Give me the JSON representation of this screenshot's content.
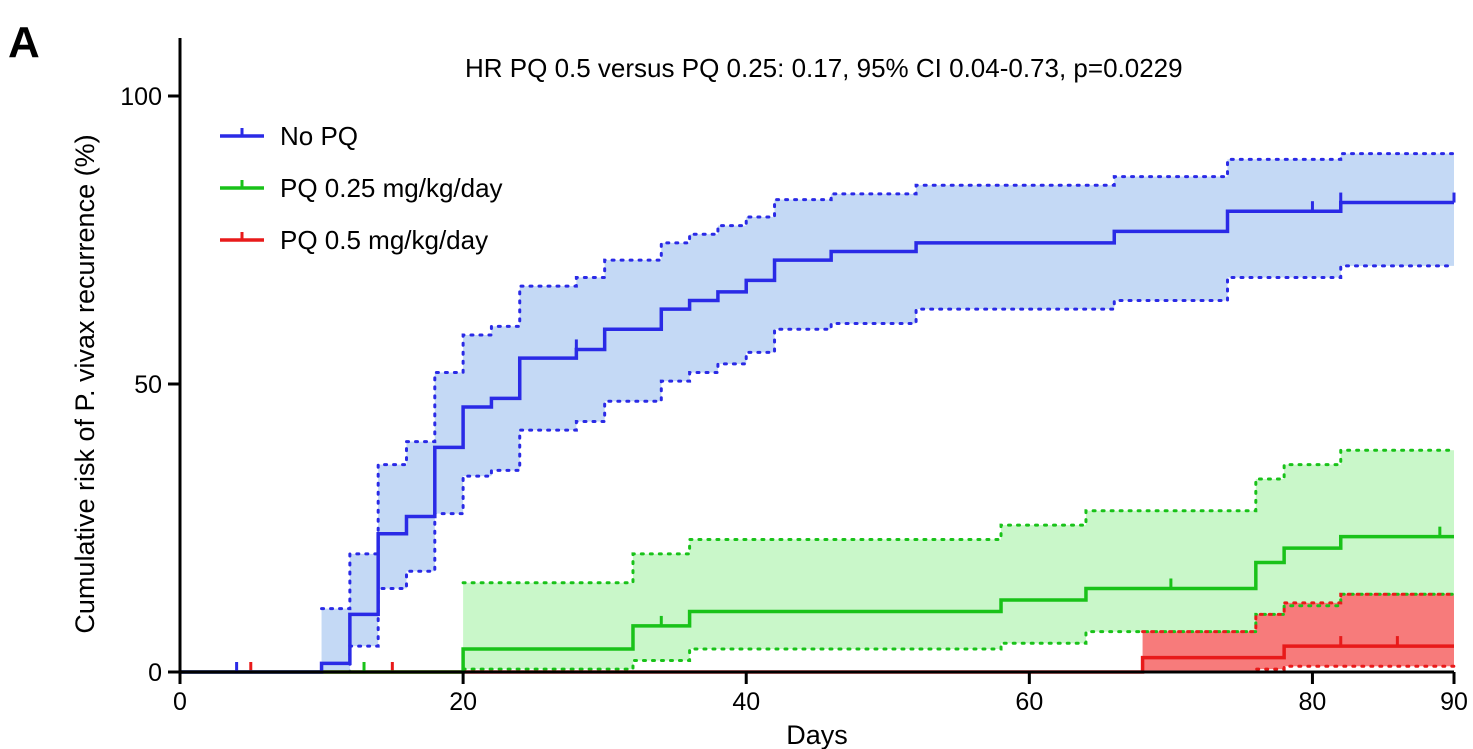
{
  "panel_label": "A",
  "chart_data": {
    "type": "line",
    "subtype": "kaplan-meier-cumulative-incidence",
    "annotation": "HR PQ 0.5 versus PQ 0.25: 0.17, 95% CI 0.04-0.73, p=0.0229",
    "xlabel": "Days",
    "ylabel": "Cumulative risk of P. vivax recurrence (%)",
    "xlim": [
      0,
      90
    ],
    "ylim": [
      0,
      100
    ],
    "x_ticks": [
      0,
      20,
      40,
      60,
      80,
      90
    ],
    "y_ticks": [
      0,
      50,
      100
    ],
    "legend_position": "top-left",
    "series": [
      {
        "name": "No PQ",
        "color": "#2a2ae6",
        "ci_fill": "#c4d9f5",
        "steps": [
          [
            0,
            0
          ],
          [
            10,
            1.5
          ],
          [
            12,
            10
          ],
          [
            14,
            24
          ],
          [
            16,
            27
          ],
          [
            18,
            39
          ],
          [
            20,
            46
          ],
          [
            22,
            47.5
          ],
          [
            24,
            54.5
          ],
          [
            28,
            56
          ],
          [
            30,
            59.5
          ],
          [
            34,
            63
          ],
          [
            36,
            64.5
          ],
          [
            38,
            66
          ],
          [
            40,
            68
          ],
          [
            42,
            71.5
          ],
          [
            46,
            73
          ],
          [
            52,
            74.5
          ],
          [
            66,
            76.5
          ],
          [
            74,
            80
          ],
          [
            82,
            81.5
          ],
          [
            90,
            81.5
          ]
        ],
        "ci_upper": [
          [
            10,
            11
          ],
          [
            12,
            20.5
          ],
          [
            14,
            36
          ],
          [
            16,
            40
          ],
          [
            18,
            52
          ],
          [
            20,
            58.5
          ],
          [
            22,
            60
          ],
          [
            24,
            67
          ],
          [
            28,
            68.5
          ],
          [
            30,
            71.5
          ],
          [
            34,
            74.5
          ],
          [
            36,
            76
          ],
          [
            38,
            77.5
          ],
          [
            40,
            79
          ],
          [
            42,
            82
          ],
          [
            46,
            83
          ],
          [
            52,
            84.5
          ],
          [
            66,
            86
          ],
          [
            74,
            89
          ],
          [
            82,
            90
          ],
          [
            90,
            90
          ]
        ],
        "ci_lower": [
          [
            10,
            0
          ],
          [
            12,
            4.5
          ],
          [
            14,
            14.5
          ],
          [
            16,
            17.5
          ],
          [
            18,
            27.5
          ],
          [
            20,
            34
          ],
          [
            22,
            35
          ],
          [
            24,
            42
          ],
          [
            28,
            43.5
          ],
          [
            30,
            47
          ],
          [
            34,
            50.5
          ],
          [
            36,
            52
          ],
          [
            38,
            53.5
          ],
          [
            40,
            55.5
          ],
          [
            42,
            59.5
          ],
          [
            46,
            60.5
          ],
          [
            52,
            63
          ],
          [
            66,
            64.5
          ],
          [
            74,
            68.5
          ],
          [
            82,
            70.5
          ],
          [
            90,
            70.5
          ]
        ],
        "censor_x": [
          4,
          28,
          80,
          82,
          90
        ]
      },
      {
        "name": "PQ 0.25 mg/kg/day",
        "color": "#19c219",
        "ci_fill": "#c9f7c9",
        "steps": [
          [
            0,
            0
          ],
          [
            20,
            4
          ],
          [
            32,
            8
          ],
          [
            36,
            10.5
          ],
          [
            58,
            12.5
          ],
          [
            64,
            14.5
          ],
          [
            76,
            19
          ],
          [
            78,
            21.5
          ],
          [
            82,
            23.5
          ],
          [
            90,
            23.5
          ]
        ],
        "ci_upper": [
          [
            20,
            15.5
          ],
          [
            32,
            20.5
          ],
          [
            36,
            23
          ],
          [
            58,
            25.5
          ],
          [
            64,
            28
          ],
          [
            76,
            33.5
          ],
          [
            78,
            36
          ],
          [
            82,
            38.5
          ],
          [
            90,
            38.5
          ]
        ],
        "ci_lower": [
          [
            20,
            0.5
          ],
          [
            32,
            2
          ],
          [
            36,
            4
          ],
          [
            58,
            5
          ],
          [
            64,
            7
          ],
          [
            76,
            10
          ],
          [
            78,
            11.5
          ],
          [
            82,
            13.5
          ],
          [
            90,
            13.5
          ]
        ],
        "censor_x": [
          13,
          34,
          70,
          89
        ]
      },
      {
        "name": "PQ 0.5 mg/kg/day",
        "color": "#e81a1a",
        "ci_fill": "#f77b7b",
        "steps": [
          [
            0,
            0
          ],
          [
            68,
            2.5
          ],
          [
            78,
            4.5
          ],
          [
            90,
            4.5
          ]
        ],
        "ci_upper": [
          [
            68,
            7
          ],
          [
            76,
            10
          ],
          [
            78,
            12
          ],
          [
            82,
            13.5
          ],
          [
            90,
            13.5
          ]
        ],
        "ci_lower": [
          [
            68,
            0
          ],
          [
            76,
            0.5
          ],
          [
            78,
            1
          ],
          [
            90,
            1
          ]
        ],
        "censor_x": [
          5,
          15,
          82,
          86
        ]
      }
    ]
  }
}
